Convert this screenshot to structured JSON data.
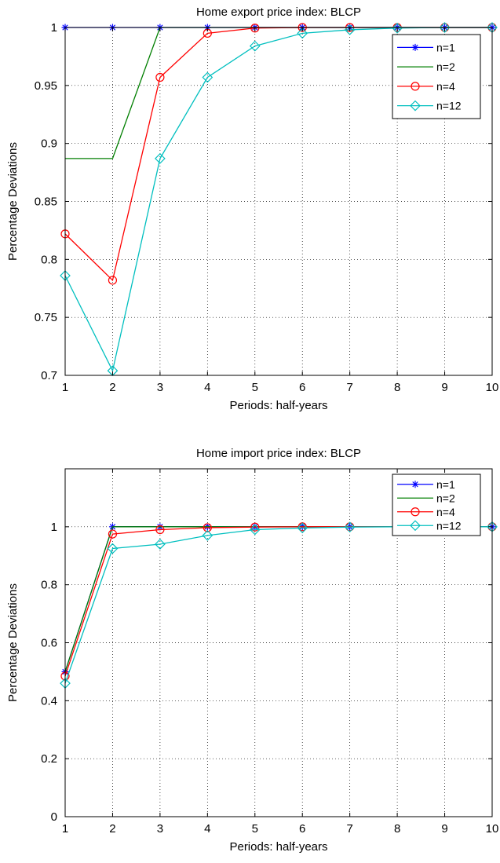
{
  "chart_data": [
    {
      "type": "line",
      "title": "Home export price index: BLCP",
      "xlabel": "Periods: half-years",
      "ylabel": "Percentage Deviations",
      "xlim": [
        1,
        10
      ],
      "ylim": [
        0.7,
        1.0
      ],
      "xticks": [
        "1",
        "2",
        "3",
        "4",
        "5",
        "6",
        "7",
        "8",
        "9",
        "10"
      ],
      "yticks": [
        "0.7",
        "0.75",
        "0.8",
        "0.85",
        "0.9",
        "0.95",
        "1"
      ],
      "grid": true,
      "legend_position": "top-right",
      "x": [
        1,
        2,
        3,
        4,
        5,
        6,
        7,
        8,
        9,
        10
      ],
      "series": [
        {
          "name": "n=1",
          "color": "#0000ff",
          "marker": "star",
          "values": [
            1.0,
            1.0,
            1.0,
            1.0,
            1.0,
            1.0,
            1.0,
            1.0,
            1.0,
            1.0
          ]
        },
        {
          "name": "n=2",
          "color": "#007f00",
          "marker": "none",
          "values": [
            0.887,
            0.887,
            1.0,
            1.0,
            1.0,
            1.0,
            1.0,
            1.0,
            1.0,
            1.0
          ]
        },
        {
          "name": "n=4",
          "color": "#ff0000",
          "marker": "circle",
          "values": [
            0.822,
            0.782,
            0.957,
            0.995,
            0.9995,
            1.0,
            1.0,
            1.0,
            1.0,
            1.0
          ]
        },
        {
          "name": "n=12",
          "color": "#00bfbf",
          "marker": "diamond",
          "values": [
            0.786,
            0.704,
            0.887,
            0.957,
            0.984,
            0.995,
            0.998,
            0.9995,
            1.0,
            1.0
          ]
        }
      ]
    },
    {
      "type": "line",
      "title": "Home import price index: BLCP",
      "xlabel": "Periods: half-years",
      "ylabel": "Percentage Deviations",
      "xlim": [
        1,
        10
      ],
      "ylim": [
        0,
        1.2
      ],
      "xticks": [
        "1",
        "2",
        "3",
        "4",
        "5",
        "6",
        "7",
        "8",
        "9",
        "10"
      ],
      "yticks": [
        "0",
        "0.2",
        "0.4",
        "0.6",
        "0.8",
        "1"
      ],
      "grid": true,
      "legend_position": "top-right",
      "x": [
        1,
        2,
        3,
        4,
        5,
        6,
        7,
        8,
        9,
        10
      ],
      "series": [
        {
          "name": "n=1",
          "color": "#0000ff",
          "marker": "star",
          "values": [
            0.5,
            1.0,
            1.0,
            1.0,
            1.0,
            1.0,
            1.0,
            1.0,
            1.0,
            1.0
          ]
        },
        {
          "name": "n=2",
          "color": "#007f00",
          "marker": "none",
          "values": [
            0.5,
            1.0,
            1.0,
            1.0,
            1.0,
            1.0,
            1.0,
            1.0,
            1.0,
            1.0
          ]
        },
        {
          "name": "n=4",
          "color": "#ff0000",
          "marker": "circle",
          "values": [
            0.485,
            0.975,
            0.99,
            0.997,
            0.999,
            1.0,
            1.0,
            1.0,
            1.0,
            1.0
          ]
        },
        {
          "name": "n=12",
          "color": "#00bfbf",
          "marker": "diamond",
          "values": [
            0.46,
            0.925,
            0.94,
            0.97,
            0.99,
            0.996,
            0.999,
            1.0,
            1.0,
            1.0
          ]
        }
      ]
    }
  ]
}
